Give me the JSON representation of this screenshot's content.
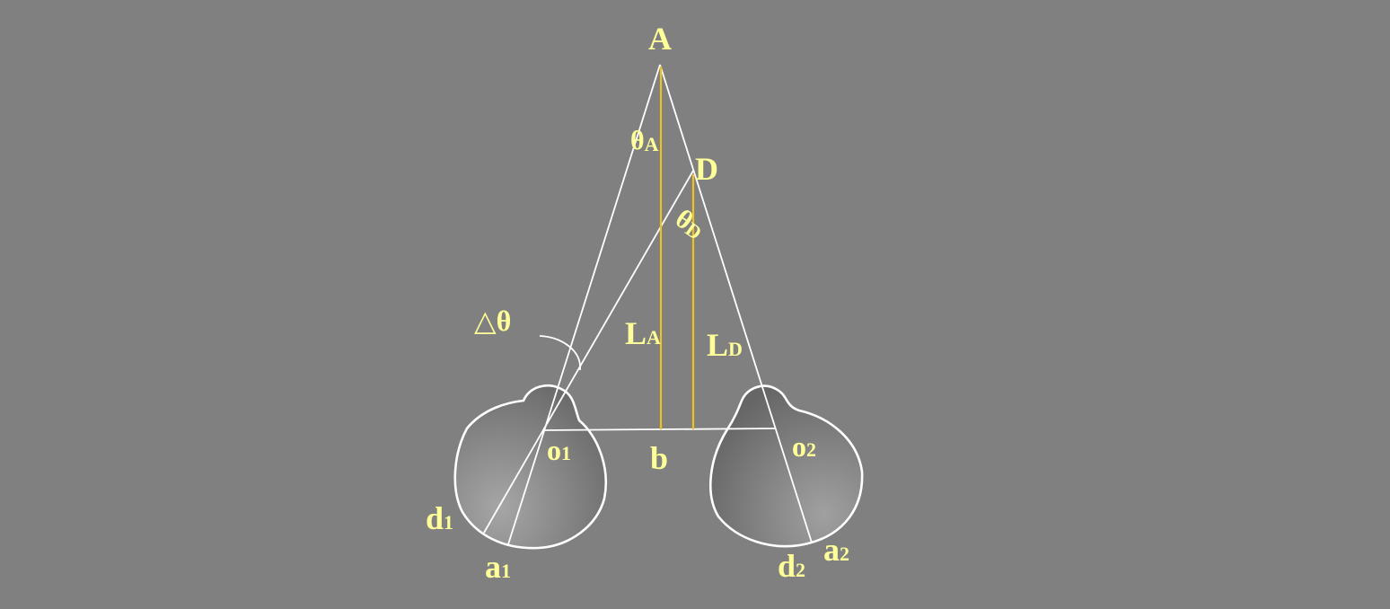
{
  "labels": {
    "point_A": "A",
    "point_D": "D",
    "theta_A_main": "θ",
    "theta_A_sub": "A",
    "theta_D_main": "θ",
    "theta_D_sub": "D",
    "delta_theta": "△θ",
    "L_A_main": "L",
    "L_A_sub": "A",
    "L_D_main": "L",
    "L_D_sub": "D",
    "o1_main": "o",
    "o1_sub": "1",
    "o2_main": "o",
    "o2_sub": "2",
    "b": "b",
    "d1_main": "d",
    "d1_sub": "1",
    "a1_main": "a",
    "a1_sub": "1",
    "d2_main": "d",
    "d2_sub": "2",
    "a2_main": "a",
    "a2_sub": "2"
  },
  "colors": {
    "background": "#808080",
    "label": "#ffff99",
    "gold_line": "#f0c020",
    "white_line": "#ffffff"
  }
}
